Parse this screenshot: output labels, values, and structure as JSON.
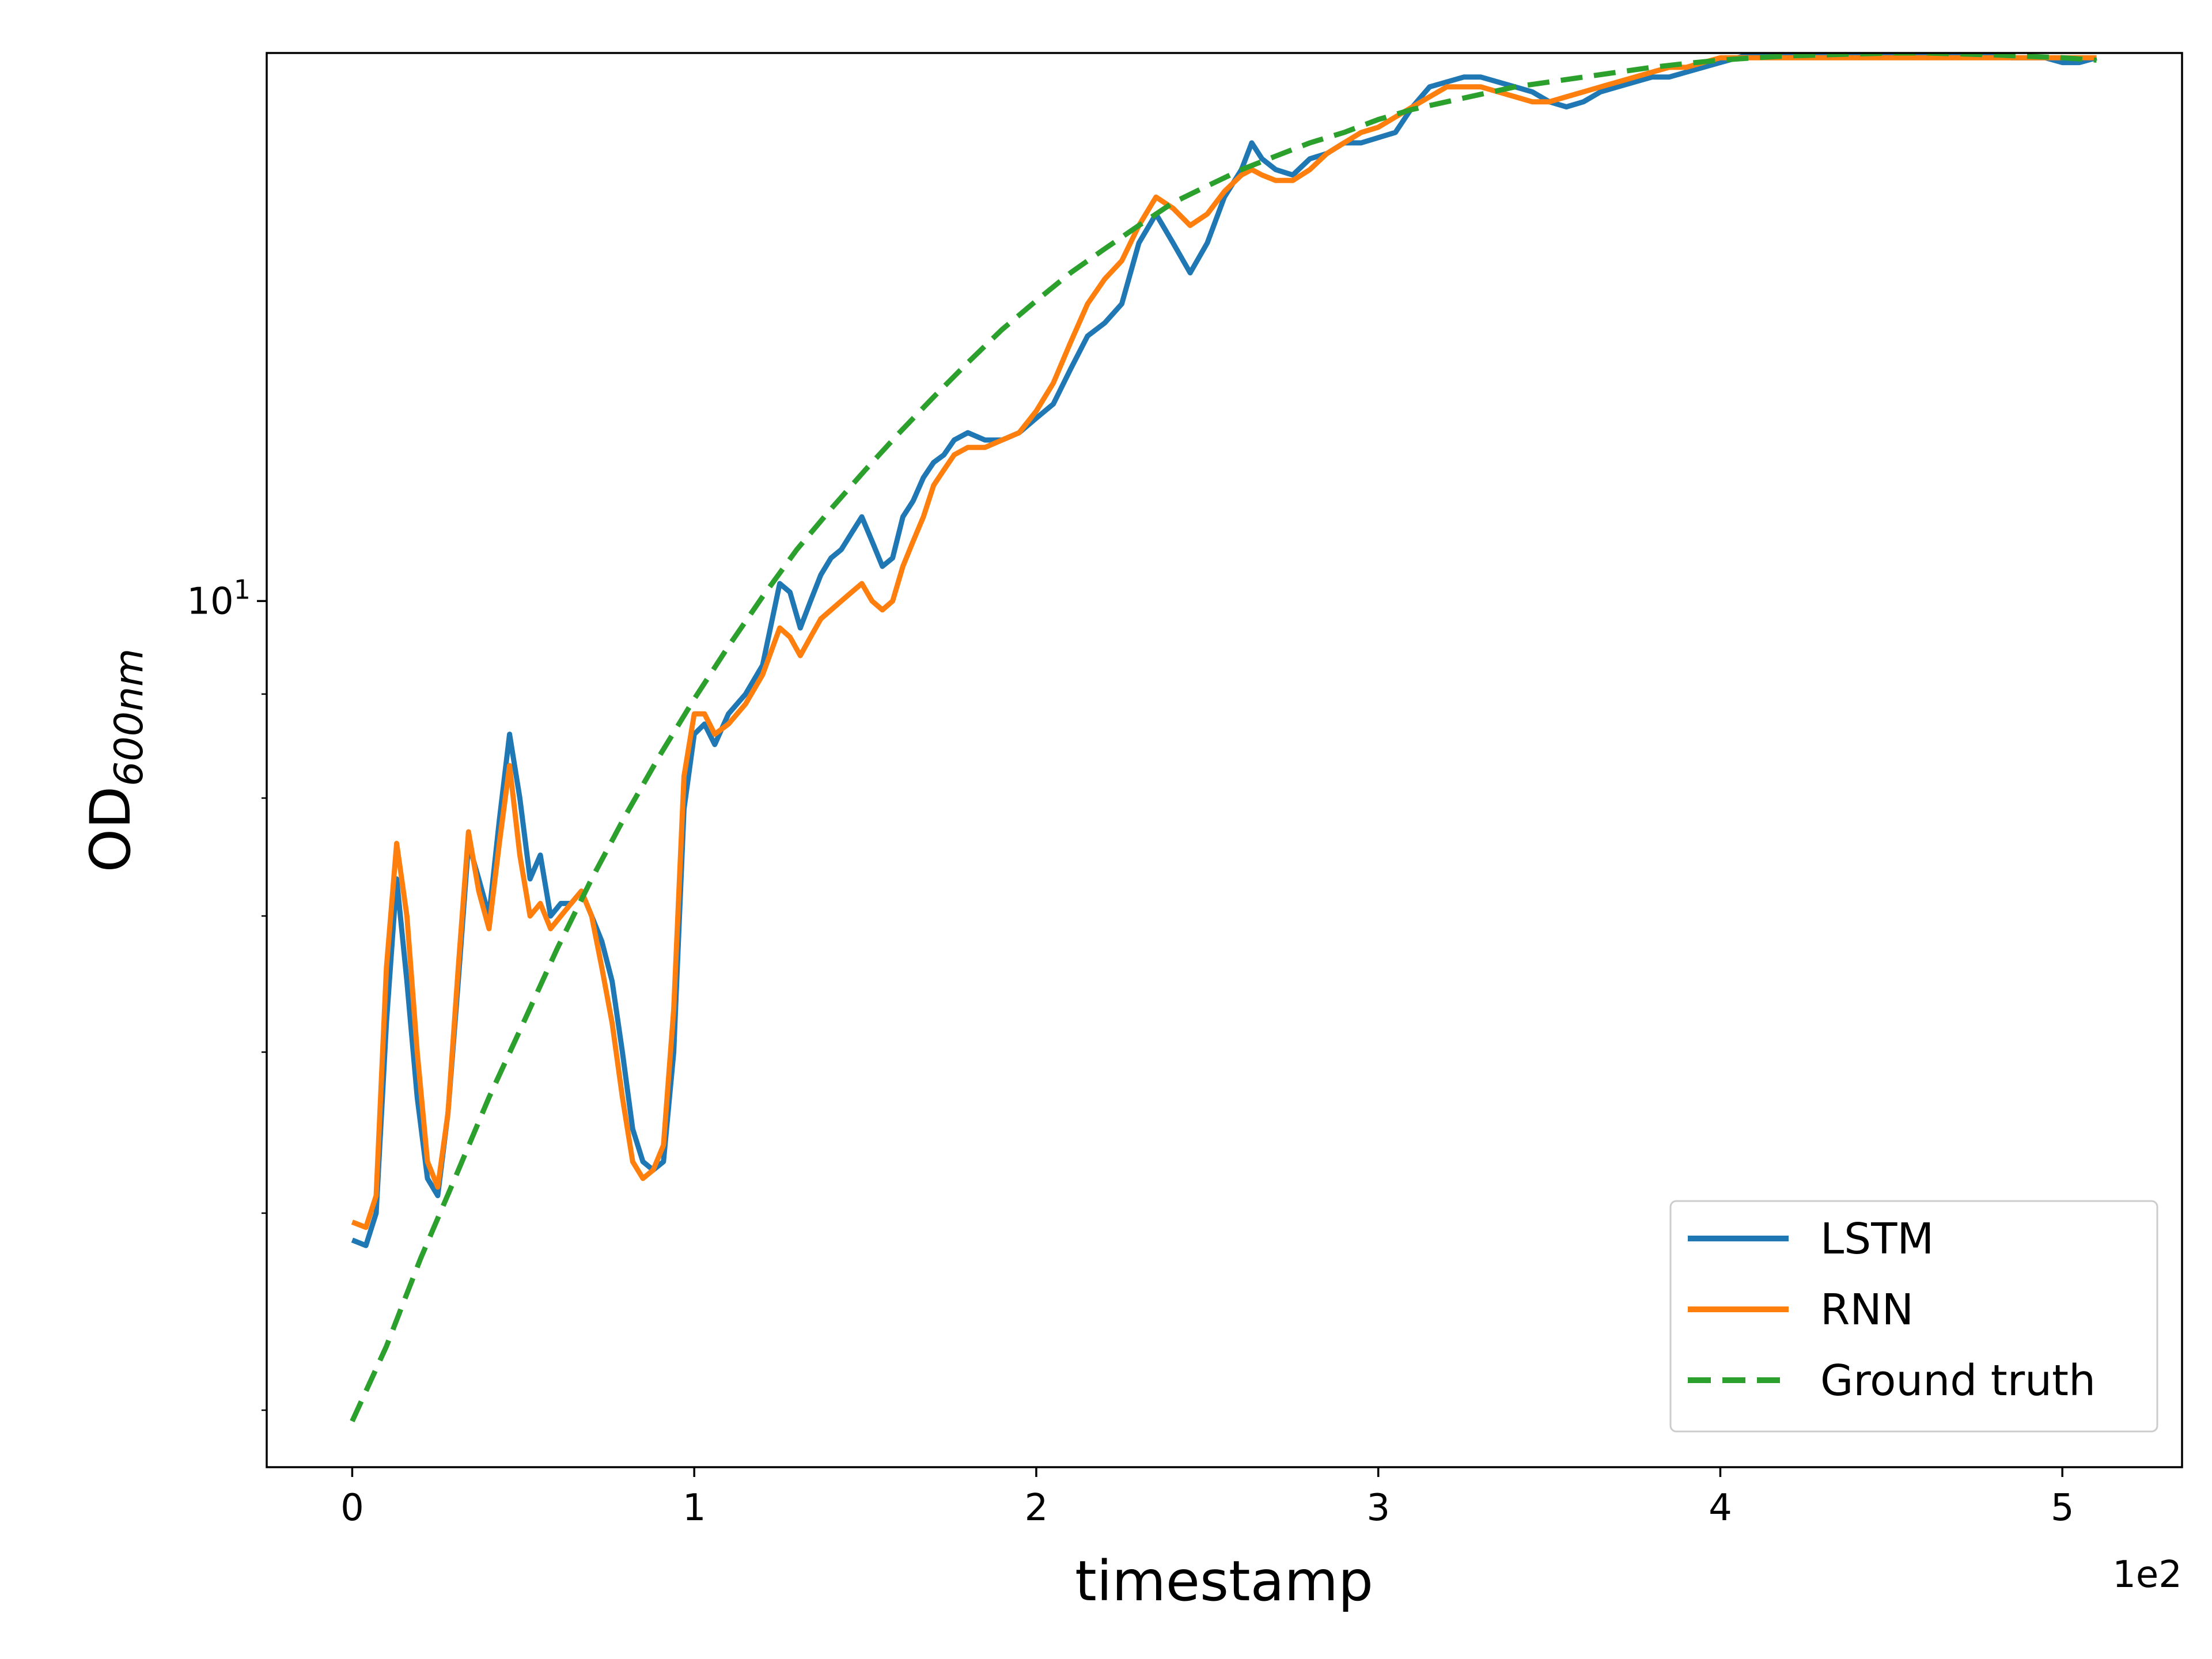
{
  "chart_data": {
    "type": "line",
    "title": "",
    "xlabel": "timestamp",
    "ylabel_main": "OD",
    "ylabel_sub": "600nm",
    "x_offset_label": "1e2",
    "xlim": [
      -25,
      535
    ],
    "ylim": [
      3.75,
      18.6
    ],
    "yscale": "log",
    "x_ticks": [
      {
        "value": 0,
        "label": "0"
      },
      {
        "value": 100,
        "label": "1"
      },
      {
        "value": 200,
        "label": "2"
      },
      {
        "value": 300,
        "label": "3"
      },
      {
        "value": 400,
        "label": "4"
      },
      {
        "value": 500,
        "label": "5"
      }
    ],
    "y_major_ticks": [
      {
        "value": 10,
        "base": "10",
        "exp": "1"
      }
    ],
    "y_minor_ticks": [
      4,
      5,
      6,
      7,
      8,
      9,
      20
    ],
    "legend_position": "lower right",
    "grid": false,
    "series": [
      {
        "name": "LSTM",
        "color": "#1f77b4",
        "style": "solid",
        "x": [
          0,
          4,
          7,
          10,
          13,
          16,
          19,
          22,
          25,
          28,
          31,
          34,
          37,
          40,
          43,
          46,
          49,
          52,
          55,
          58,
          61,
          64,
          67,
          70,
          73,
          76,
          79,
          82,
          85,
          88,
          91,
          94,
          97,
          100,
          103,
          106,
          110,
          115,
          120,
          125,
          128,
          131,
          134,
          137,
          140,
          143,
          146,
          149,
          152,
          155,
          158,
          161,
          164,
          167,
          170,
          173,
          176,
          180,
          185,
          190,
          195,
          200,
          205,
          210,
          215,
          220,
          225,
          230,
          235,
          240,
          245,
          250,
          255,
          260,
          263,
          266,
          270,
          275,
          280,
          285,
          290,
          295,
          300,
          305,
          310,
          315,
          320,
          325,
          330,
          335,
          340,
          345,
          350,
          355,
          360,
          365,
          370,
          375,
          380,
          385,
          390,
          395,
          400,
          405,
          410,
          415,
          420,
          425,
          430,
          435,
          440,
          445,
          450,
          455,
          460,
          465,
          470,
          475,
          480,
          485,
          490,
          495,
          500,
          505,
          510
        ],
        "y": [
          4.85,
          4.82,
          5.0,
          6.2,
          7.3,
          6.5,
          5.7,
          5.2,
          5.1,
          5.6,
          6.5,
          7.6,
          7.3,
          7.0,
          7.8,
          8.6,
          8.0,
          7.3,
          7.5,
          7.0,
          7.1,
          7.1,
          7.2,
          7.0,
          6.8,
          6.5,
          6.0,
          5.5,
          5.3,
          5.25,
          5.3,
          6.0,
          7.9,
          8.6,
          8.7,
          8.5,
          8.8,
          9.0,
          9.3,
          10.2,
          10.1,
          9.7,
          10.0,
          10.3,
          10.5,
          10.6,
          10.8,
          11.0,
          10.7,
          10.4,
          10.5,
          11.0,
          11.2,
          11.5,
          11.7,
          11.8,
          12.0,
          12.1,
          12.0,
          12.0,
          12.1,
          12.3,
          12.5,
          13.0,
          13.5,
          13.7,
          14.0,
          15.0,
          15.5,
          15.0,
          14.5,
          15.0,
          15.8,
          16.3,
          16.8,
          16.5,
          16.3,
          16.2,
          16.5,
          16.6,
          16.8,
          16.8,
          16.9,
          17.0,
          17.5,
          17.9,
          18.0,
          18.1,
          18.1,
          18.0,
          17.9,
          17.8,
          17.6,
          17.5,
          17.6,
          17.8,
          17.9,
          18.0,
          18.1,
          18.1,
          18.2,
          18.3,
          18.4,
          18.5,
          18.6,
          18.6,
          18.6,
          18.6,
          18.6,
          18.6,
          18.6,
          18.6,
          18.6,
          18.6,
          18.6,
          18.6,
          18.6,
          18.6,
          18.6,
          18.5,
          18.5,
          18.5,
          18.4,
          18.4,
          18.5
        ]
      },
      {
        "name": "RNN",
        "color": "#ff7f0e",
        "style": "solid",
        "x": [
          0,
          4,
          7,
          10,
          13,
          16,
          19,
          22,
          25,
          28,
          31,
          34,
          37,
          40,
          43,
          46,
          49,
          52,
          55,
          58,
          61,
          64,
          67,
          70,
          73,
          76,
          79,
          82,
          85,
          88,
          91,
          94,
          97,
          100,
          103,
          106,
          110,
          115,
          120,
          125,
          128,
          131,
          134,
          137,
          140,
          143,
          146,
          149,
          152,
          155,
          158,
          161,
          164,
          167,
          170,
          173,
          176,
          180,
          185,
          190,
          195,
          200,
          205,
          210,
          215,
          220,
          225,
          230,
          235,
          240,
          245,
          250,
          255,
          260,
          263,
          266,
          270,
          275,
          280,
          285,
          290,
          295,
          300,
          305,
          310,
          315,
          320,
          325,
          330,
          335,
          340,
          345,
          350,
          355,
          360,
          365,
          370,
          375,
          380,
          385,
          390,
          395,
          400,
          405,
          410,
          415,
          420,
          425,
          430,
          435,
          440,
          445,
          450,
          455,
          460,
          465,
          470,
          475,
          480,
          485,
          490,
          495,
          500,
          505,
          510
        ],
        "y": [
          4.95,
          4.92,
          5.1,
          6.6,
          7.6,
          7.0,
          6.0,
          5.3,
          5.15,
          5.6,
          6.6,
          7.7,
          7.2,
          6.9,
          7.6,
          8.3,
          7.5,
          7.0,
          7.1,
          6.9,
          7.0,
          7.1,
          7.2,
          7.0,
          6.6,
          6.2,
          5.7,
          5.3,
          5.2,
          5.25,
          5.4,
          6.3,
          8.2,
          8.8,
          8.8,
          8.6,
          8.7,
          8.9,
          9.2,
          9.7,
          9.6,
          9.4,
          9.6,
          9.8,
          9.9,
          10.0,
          10.1,
          10.2,
          10.0,
          9.9,
          10.0,
          10.4,
          10.7,
          11.0,
          11.4,
          11.6,
          11.8,
          11.9,
          11.9,
          12.0,
          12.1,
          12.4,
          12.8,
          13.4,
          14.0,
          14.4,
          14.7,
          15.3,
          15.8,
          15.6,
          15.3,
          15.5,
          15.9,
          16.2,
          16.3,
          16.2,
          16.1,
          16.1,
          16.3,
          16.6,
          16.8,
          17.0,
          17.1,
          17.3,
          17.5,
          17.7,
          17.9,
          17.9,
          17.9,
          17.8,
          17.7,
          17.6,
          17.6,
          17.7,
          17.8,
          17.9,
          18.0,
          18.1,
          18.2,
          18.3,
          18.3,
          18.4,
          18.5,
          18.5,
          18.5,
          18.5,
          18.5,
          18.5,
          18.5,
          18.5,
          18.5,
          18.5,
          18.5,
          18.5,
          18.5,
          18.5,
          18.5,
          18.5,
          18.5,
          18.5,
          18.5,
          18.5,
          18.5,
          18.5,
          18.5
        ]
      },
      {
        "name": "Ground truth",
        "color": "#2ca02c",
        "style": "dashed",
        "x": [
          0,
          10,
          20,
          30,
          40,
          50,
          60,
          70,
          80,
          90,
          100,
          110,
          120,
          130,
          140,
          150,
          160,
          170,
          180,
          190,
          200,
          210,
          220,
          230,
          240,
          250,
          260,
          270,
          280,
          290,
          300,
          310,
          320,
          330,
          340,
          350,
          360,
          370,
          380,
          390,
          400,
          410,
          420,
          430,
          440,
          450,
          460,
          470,
          480,
          490,
          500,
          510
        ],
        "y": [
          3.95,
          4.3,
          4.75,
          5.2,
          5.7,
          6.2,
          6.75,
          7.3,
          7.85,
          8.4,
          8.95,
          9.5,
          10.05,
          10.6,
          11.1,
          11.6,
          12.1,
          12.6,
          13.1,
          13.6,
          14.05,
          14.5,
          14.9,
          15.3,
          15.7,
          16.0,
          16.3,
          16.55,
          16.8,
          17.0,
          17.25,
          17.45,
          17.6,
          17.75,
          17.9,
          18.0,
          18.1,
          18.2,
          18.3,
          18.38,
          18.45,
          18.5,
          18.54,
          18.56,
          18.58,
          18.6,
          18.6,
          18.58,
          18.56,
          18.53,
          18.5,
          18.45
        ]
      }
    ]
  }
}
